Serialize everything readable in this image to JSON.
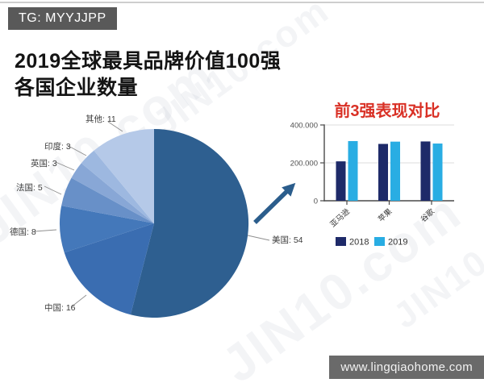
{
  "header": {
    "tg_badge": "TG: MYYJJPP"
  },
  "title": {
    "line1": "2019全球最具品牌价值100强",
    "line2": "各国企业数量"
  },
  "watermark": "JIN10.com",
  "footer": {
    "website": "www.lingqiaohome.com"
  },
  "chart_data": [
    {
      "type": "pie",
      "title": "2019全球最具品牌价值100强 各国企业数量",
      "direction": "clockwise",
      "start_angle": "12-oclock",
      "total": 100,
      "slices": [
        {
          "label": "美国",
          "value": 54,
          "color": "#2e5f90"
        },
        {
          "label": "中国",
          "value": 16,
          "color": "#3a6db1"
        },
        {
          "label": "德国",
          "value": 8,
          "color": "#4478ba"
        },
        {
          "label": "法国",
          "value": 5,
          "color": "#6890c8"
        },
        {
          "label": "英国",
          "value": 3,
          "color": "#88a7d6"
        },
        {
          "label": "印度",
          "value": 3,
          "color": "#9db8e0"
        },
        {
          "label": "其他",
          "value": 11,
          "color": "#b5c9e8"
        }
      ]
    },
    {
      "type": "bar",
      "title": "前3强表现对比",
      "title_color": "#d93025",
      "categories": [
        "亚马逊",
        "苹果",
        "谷歌"
      ],
      "series": [
        {
          "name": "2018",
          "color": "#1e2a69",
          "values": [
            208000,
            300000,
            313000
          ]
        },
        {
          "name": "2019",
          "color": "#29ade3",
          "values": [
            315000,
            312000,
            302000
          ]
        }
      ],
      "ylim": [
        0,
        400000
      ],
      "yticks": [
        {
          "label": "400.000",
          "value": 400000
        },
        {
          "label": "200.000",
          "value": 200000
        },
        {
          "label": "0",
          "value": 0
        }
      ],
      "grid": "horizontal",
      "legend_position": "bottom-left"
    }
  ]
}
